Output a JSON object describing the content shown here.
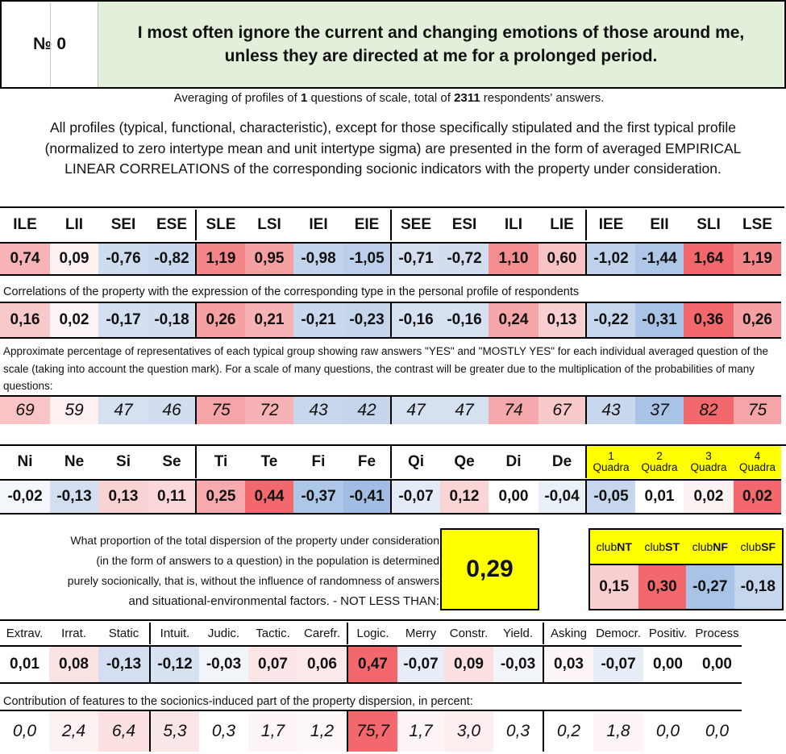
{
  "header": {
    "num_label": "№",
    "num_value": "0",
    "question": "I most often ignore the current and changing emotions of those around me, unless they are directed at me for a prolonged period."
  },
  "summary": {
    "prefix": "Averaging of profiles of ",
    "n_questions": "1",
    "middle": " questions of scale, total of ",
    "n_answers": "2311",
    "suffix": " respondents' answers."
  },
  "description": "All profiles (typical, functional, characteristic), except for those specifically stipulated and the first typical profile (normalized to zero intertype mean and unit intertype sigma) are presented in the form of averaged EMPIRICAL LINEAR CORRELATIONS of the corresponding socionic indicators with the property under consideration.",
  "types": {
    "labels": [
      "ILE",
      "LII",
      "SEI",
      "ESE",
      "SLE",
      "LSI",
      "IEI",
      "EIE",
      "SEE",
      "ESI",
      "ILI",
      "LIE",
      "IEE",
      "EII",
      "SLI",
      "LSE"
    ],
    "profile": [
      "0,74",
      "0,09",
      "-0,76",
      "-0,82",
      "1,19",
      "0,95",
      "-0,98",
      "-1,05",
      "-0,71",
      "-0,72",
      "1,10",
      "0,60",
      "-1,02",
      "-1,44",
      "1,64",
      "1,19"
    ],
    "profile_colors": [
      "#f7b3b6",
      "#fdf1f2",
      "#cfdcef",
      "#c9d8ee",
      "#f48689",
      "#f5a0a3",
      "#c2d3ec",
      "#bccfea",
      "#d3deef",
      "#d2ddef",
      "#f58e91",
      "#f8c3c5",
      "#c0d2eb",
      "#aec6e7",
      "#f2676b",
      "#f48689"
    ],
    "correlation_caption": "Correlations of the property with the expression of the corresponding type in the personal profile of respondents",
    "correlation": [
      "0,16",
      "0,02",
      "-0,17",
      "-0,18",
      "0,26",
      "0,21",
      "-0,21",
      "-0,23",
      "-0,16",
      "-0,16",
      "0,24",
      "0,13",
      "-0,22",
      "-0,31",
      "0,36",
      "0,26"
    ],
    "correlation_colors": [
      "#f8c9cb",
      "#fdf5f5",
      "#d4e0f1",
      "#d2def0",
      "#f5a1a4",
      "#f6b2b4",
      "#c9d8ee",
      "#c4d5ec",
      "#d6e1f1",
      "#d6e1f1",
      "#f5a6a9",
      "#f9cfd1",
      "#c6d6ed",
      "#a9c3e6",
      "#f2686c",
      "#f5a1a4"
    ],
    "percent_caption": "Approximate percentage of representatives of each typical group showing raw answers \"YES\" and \"MOSTLY YES\" for each individual averaged question of the scale (taking into account the question mark). For a scale of many questions, the contrast will be greater due to the multiplication of the probabilities of many questions:",
    "percent": [
      "69",
      "59",
      "47",
      "46",
      "75",
      "72",
      "43",
      "42",
      "47",
      "47",
      "74",
      "67",
      "43",
      "37",
      "82",
      "75"
    ],
    "percent_colors": [
      "#f8c4c6",
      "#fdf0f0",
      "#d5e0f1",
      "#d2def0",
      "#f5a4a7",
      "#f6b2b4",
      "#c8d7ee",
      "#c4d5ec",
      "#d5e0f1",
      "#d5e0f1",
      "#f5a9ac",
      "#f8c9cb",
      "#c8d7ee",
      "#a9c3e6",
      "#f2686c",
      "#f5a4a7"
    ]
  },
  "functions": {
    "labels": [
      "Ni",
      "Ne",
      "Si",
      "Se",
      "Ti",
      "Te",
      "Fi",
      "Fe",
      "Qi",
      "Qe",
      "Di",
      "De"
    ],
    "values": [
      "-0,02",
      "-0,13",
      "0,13",
      "0,11",
      "0,25",
      "0,44",
      "-0,37",
      "-0,41",
      "-0,07",
      "0,12",
      "0,00",
      "-0,04"
    ],
    "colors": [
      "#f3f6fb",
      "#d3dff0",
      "#f9d2d4",
      "#fad8d9",
      "#f6aaad",
      "#f2686c",
      "#aec6e7",
      "#a2bde3",
      "#e4ebf6",
      "#f9d5d6",
      "#ffffff",
      "#eaf0f8"
    ]
  },
  "quadras": {
    "labels": [
      [
        "1",
        "Quadra"
      ],
      [
        "2",
        "Quadra"
      ],
      [
        "3",
        "Quadra"
      ],
      [
        "4",
        "Quadra"
      ]
    ],
    "values": [
      "-0,05",
      "0,01",
      "0,02",
      "0,02"
    ],
    "colors": [
      "#c6d6ed",
      "#ffffff",
      "#fdf2f2",
      "#f2686c"
    ],
    "header_color": "#ffff00"
  },
  "dispersion": {
    "lines": [
      "What proportion of the total dispersion of the property under consideration",
      "(in the form of answers to a question) in the population is determined",
      "purely socionically, that is, without the influence of randomness of answers",
      "and situational-environmental factors. - NOT LESS THAN:"
    ],
    "value": "0,29",
    "box_color": "#ffff00"
  },
  "clubs": {
    "labels": [
      [
        "club",
        "NT"
      ],
      [
        "club",
        "ST"
      ],
      [
        "club",
        "NF"
      ],
      [
        "club",
        "SF"
      ]
    ],
    "values": [
      "0,15",
      "0,30",
      "-0,27",
      "-0,18"
    ],
    "colors": [
      "#f9cfd1",
      "#f2686c",
      "#a9c3e6",
      "#c6d6ed"
    ],
    "header_color": "#ffff00"
  },
  "features": {
    "labels": [
      "Extrav.",
      "Irrat.",
      "Static",
      "Intuit.",
      "Judic.",
      "Tactic.",
      "Carefr.",
      "Logic.",
      "Merry",
      "Constr.",
      "Yield.",
      "Asking",
      "Democr.",
      "Positiv.",
      "Process"
    ],
    "values": [
      "0,01",
      "0,08",
      "-0,13",
      "-0,12",
      "-0,03",
      "0,07",
      "0,06",
      "0,47",
      "-0,07",
      "0,09",
      "-0,03",
      "0,03",
      "-0,07",
      "0,00",
      "0,00"
    ],
    "colors": [
      "#ffffff",
      "#fbe3e4",
      "#d3dff0",
      "#d6e1f1",
      "#f1f5fa",
      "#fce6e7",
      "#fce9ea",
      "#f2686c",
      "#e8eef7",
      "#fbe0e1",
      "#f1f5fa",
      "#fef6f6",
      "#e8eef7",
      "#ffffff",
      "#ffffff"
    ],
    "contribution_caption": "Contribution of features to the socionics-induced part of the property dispersion, in percent:",
    "contribution": [
      "0,0",
      "2,4",
      "6,4",
      "5,3",
      "0,3",
      "1,7",
      "1,2",
      "75,7",
      "1,7",
      "3,0",
      "0,3",
      "0,2",
      "1,8",
      "0,0",
      "0,0"
    ],
    "contribution_colors": [
      "#ffffff",
      "#fdf2f2",
      "#fbe1e2",
      "#fbe6e7",
      "#ffffff",
      "#fef6f6",
      "#fef8f8",
      "#f2686c",
      "#fef6f6",
      "#fdeef0",
      "#ffffff",
      "#ffffff",
      "#fef6f6",
      "#ffffff",
      "#ffffff"
    ]
  },
  "colors": {
    "header_bg": "#e2efda",
    "positive": "#f2686c",
    "negative": "#a9c3e6",
    "highlight": "#ffff00"
  }
}
